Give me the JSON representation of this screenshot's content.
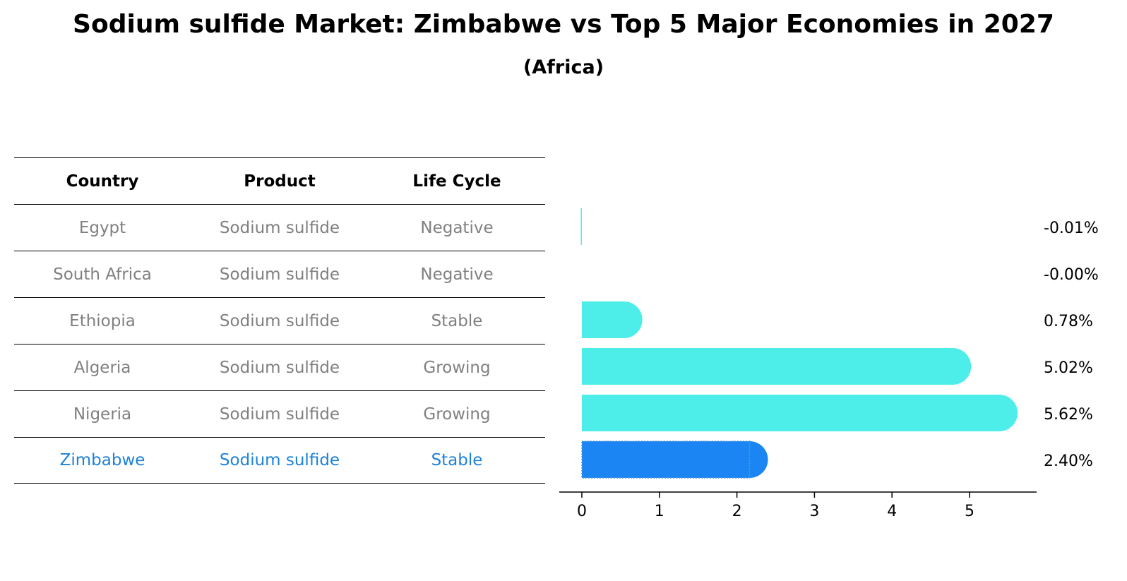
{
  "title": "Sodium sulfide Market: Zimbabwe vs Top 5 Major Economies in 2027",
  "subtitle": "(Africa)",
  "table": {
    "headers": [
      "Country",
      "Product",
      "Life Cycle"
    ],
    "rows": [
      {
        "country": "Egypt",
        "product": "Sodium sulfide",
        "life_cycle": "Negative"
      },
      {
        "country": "South Africa",
        "product": "Sodium sulfide",
        "life_cycle": "Negative"
      },
      {
        "country": "Ethiopia",
        "product": "Sodium sulfide",
        "life_cycle": "Stable"
      },
      {
        "country": "Algeria",
        "product": "Sodium sulfide",
        "life_cycle": "Growing"
      },
      {
        "country": "Nigeria",
        "product": "Sodium sulfide",
        "life_cycle": "Growing"
      },
      {
        "country": "Zimbabwe",
        "product": "Sodium sulfide",
        "life_cycle": "Stable"
      }
    ]
  },
  "colors": {
    "bar": "#4deeea",
    "highlight": "#1a85f3",
    "muted_text": "#808080",
    "highlight_text": "#1e82d8"
  },
  "chart_data": {
    "type": "bar",
    "orientation": "horizontal",
    "categories": [
      "Egypt",
      "South Africa",
      "Ethiopia",
      "Algeria",
      "Nigeria",
      "Zimbabwe"
    ],
    "values": [
      -0.01,
      -0.0,
      0.78,
      5.02,
      5.62,
      2.4
    ],
    "value_labels": [
      "-0.01%",
      "-0.00%",
      "0.78%",
      "5.02%",
      "5.62%",
      "2.40%"
    ],
    "highlight": "Zimbabwe",
    "xlim": [
      -0.3,
      5.9
    ],
    "xticks": [
      0,
      1,
      2,
      3,
      4,
      5
    ],
    "xtick_labels": [
      "0",
      "1",
      "2",
      "3",
      "4",
      "5"
    ]
  }
}
